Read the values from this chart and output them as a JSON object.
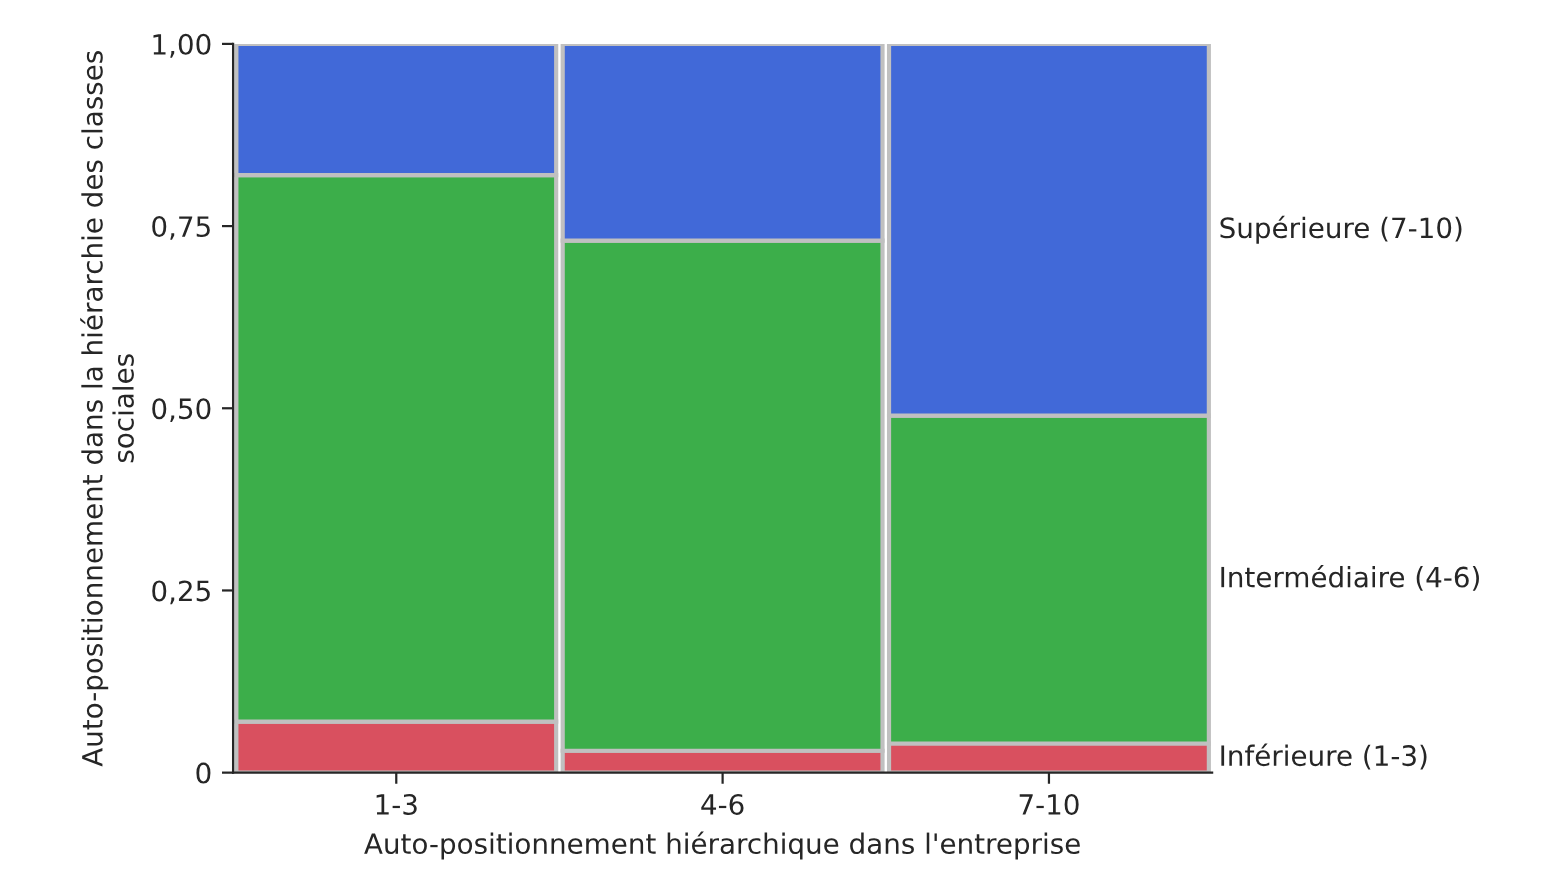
{
  "chart_data": {
    "type": "bar",
    "stacked": true,
    "xlabel": "Auto-positionnement hiérarchique dans l'entreprise",
    "ylabel": "Auto-positionnement dans la hiérarchie des classes sociales",
    "categories": [
      "1-3",
      "4-6",
      "7-10"
    ],
    "series": [
      {
        "name": "Inférieure (1-3)",
        "color": "#d9505f",
        "values": [
          0.07,
          0.03,
          0.04
        ]
      },
      {
        "name": "Intermédiaire (4-6)",
        "color": "#3cae4a",
        "values": [
          0.75,
          0.7,
          0.45
        ]
      },
      {
        "name": "Supérieure (7-10)",
        "color": "#4169d8",
        "values": [
          0.18,
          0.27,
          0.51
        ]
      }
    ],
    "ylim": [
      0,
      1
    ],
    "yticks": [
      {
        "value": 0,
        "label": "0"
      },
      {
        "value": 0.25,
        "label": "0,25"
      },
      {
        "value": 0.5,
        "label": "0,50"
      },
      {
        "value": 0.75,
        "label": "0,75"
      },
      {
        "value": 1,
        "label": "1,00"
      }
    ],
    "grid": false,
    "legend": false
  }
}
